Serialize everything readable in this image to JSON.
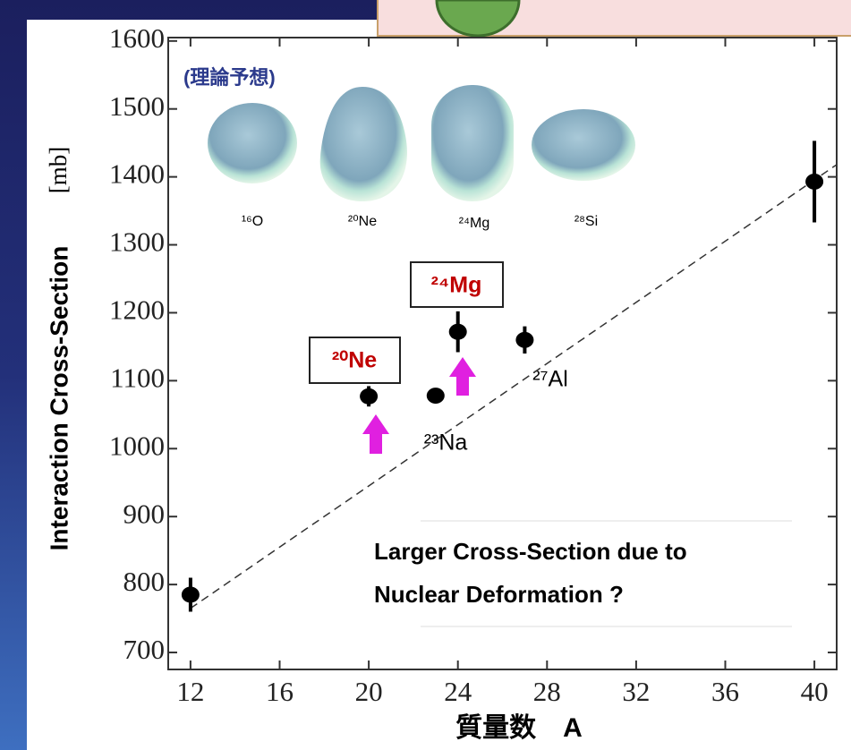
{
  "chart_data": {
    "type": "scatter",
    "y_label": "Interaction Cross-Section",
    "y_unit": "[mb]",
    "x_label": "質量数　A",
    "x": [
      12,
      20,
      23,
      24,
      27,
      40
    ],
    "values": [
      785,
      1077,
      1078,
      1172,
      1160,
      1393
    ],
    "errors": [
      25,
      15,
      10,
      30,
      20,
      60
    ],
    "color": "#000000",
    "trend": {
      "x": [
        12,
        41
      ],
      "values": [
        765,
        1418
      ],
      "color": "#333333"
    },
    "xlim": [
      11,
      41
    ],
    "ylim": [
      675,
      1605
    ],
    "xticks": [
      12,
      16,
      20,
      24,
      28,
      32,
      36,
      40
    ],
    "yticks": [
      700,
      800,
      900,
      1000,
      1100,
      1200,
      1300,
      1400,
      1500,
      1600
    ],
    "annotations": {
      "theory": "(理論予想)",
      "shape_labels": [
        "¹⁶O",
        "²⁰Ne",
        "²⁴Mg",
        "²⁸Si"
      ],
      "boxed": [
        "²⁰Ne",
        "²⁴Mg"
      ],
      "points": [
        "²³Na",
        "²⁷Al"
      ],
      "note": [
        "Larger Cross-Section due to",
        "Nuclear Deformation ?"
      ]
    }
  }
}
